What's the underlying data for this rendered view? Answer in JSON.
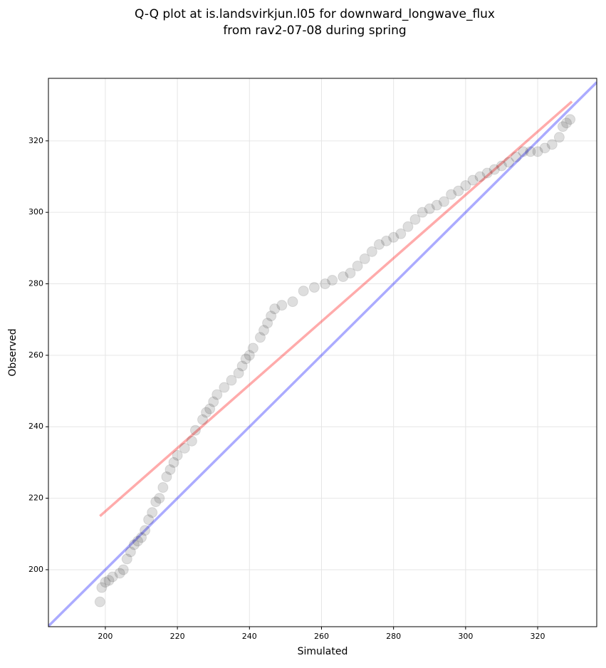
{
  "chart_data": {
    "type": "scatter",
    "title": [
      "Q-Q plot at is.landsvirkjun.l05 for downward_longwave_flux",
      "from rav2-07-08 during spring"
    ],
    "x_label": "Simulated",
    "y_label": "Observed",
    "xlim": [
      184.2,
      336.4
    ],
    "ylim": [
      184.05,
      337.5
    ],
    "xticks": [
      200,
      220,
      240,
      260,
      280,
      300,
      320
    ],
    "yticks": [
      200,
      220,
      240,
      260,
      280,
      300,
      320
    ],
    "grid": true,
    "color": "#000000",
    "x": [
      198.5,
      199,
      200,
      201,
      202,
      204,
      205,
      206,
      207,
      208,
      209,
      210,
      211,
      212,
      213,
      214,
      215,
      216,
      217,
      218,
      219,
      220,
      222,
      224,
      225,
      227,
      228,
      229,
      230,
      231,
      233,
      235,
      237,
      238,
      239,
      240,
      241,
      243,
      244,
      245,
      246,
      247,
      249,
      252,
      255,
      258,
      261,
      263,
      266,
      268,
      270,
      272,
      274,
      276,
      278,
      280,
      282,
      284,
      286,
      288,
      290,
      292,
      294,
      296,
      298,
      300,
      302,
      304,
      306,
      308,
      310,
      312,
      314,
      316,
      318,
      320,
      322,
      324,
      326,
      327,
      328,
      329
    ],
    "values": [
      191,
      195,
      196.5,
      197,
      198,
      199,
      200,
      203,
      205,
      207,
      208,
      209,
      211,
      214,
      216,
      219,
      220,
      223,
      226,
      228,
      230,
      232,
      234,
      236,
      239,
      242,
      244,
      245,
      247,
      249,
      251,
      253,
      255,
      257,
      259,
      260,
      262,
      265,
      267,
      269,
      271,
      273,
      274,
      275,
      278,
      279,
      280,
      281,
      282,
      283,
      285,
      287,
      289,
      291,
      292,
      293,
      294,
      296,
      298,
      300,
      301,
      302,
      303,
      305,
      306,
      307.5,
      309,
      310,
      311,
      312,
      313,
      314,
      315.5,
      317,
      317,
      317,
      318,
      319,
      321,
      324,
      325,
      326
    ],
    "lines": [
      {
        "color": "#0000ff",
        "x": [
          184.2,
          336.4
        ],
        "y": [
          184.2,
          336.4
        ]
      },
      {
        "color": "#ff0000",
        "x": [
          198.5,
          329.5
        ],
        "y": [
          215,
          331
        ]
      }
    ]
  }
}
